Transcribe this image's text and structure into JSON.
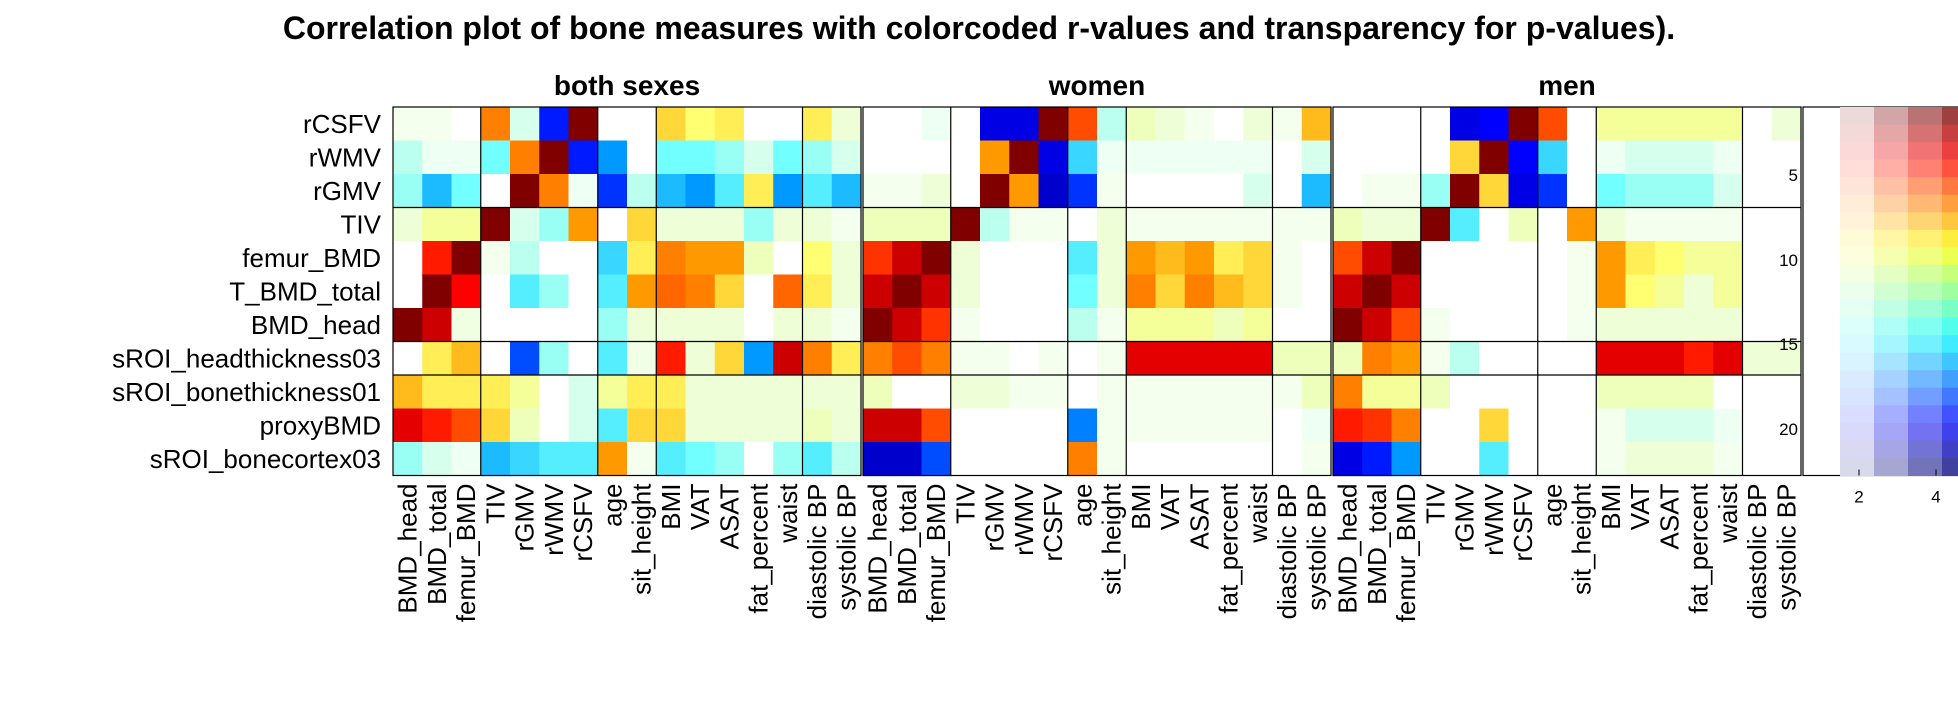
{
  "chart_data": {
    "type": "heatmap",
    "title": "Correlation plot of bone measures with colorcoded r-values and transparency for p-values).",
    "rows": [
      "rCSFV",
      "rWMV",
      "rGMV",
      "TIV",
      "femur_BMD",
      "T_BMD_total",
      "BMD_head",
      "sROI_headthickness03",
      "sROI_bonethickness01",
      "proxyBMD",
      "sROI_bonecortex03"
    ],
    "columns": [
      "BMD_head",
      "BMD_total",
      "femur_BMD",
      "TIV",
      "rGMV",
      "rWMV",
      "rCSFV",
      "age",
      "sit_height",
      "BMI",
      "VAT",
      "ASAT",
      "fat_percent",
      "waist",
      "diastolic BP",
      "systolic BP"
    ],
    "row_groups": [
      3,
      4,
      1,
      3
    ],
    "column_groups": [
      3,
      4,
      2,
      5,
      2
    ],
    "y_tick_labels": [
      "5",
      "10",
      "15",
      "20"
    ],
    "colorbar_tick_labels": [
      "2",
      "4"
    ],
    "value_range": [
      -1,
      1
    ],
    "panels": [
      {
        "title": "both sexes",
        "r": [
          [
            0.05,
            0.05,
            0.0,
            0.5,
            -0.1,
            -0.7,
            1.0,
            0.0,
            0.0,
            0.35,
            0.25,
            0.3,
            0.0,
            0.0,
            0.3,
            0.1
          ],
          [
            -0.15,
            -0.05,
            -0.05,
            -0.25,
            0.5,
            1.0,
            -0.7,
            -0.45,
            0.0,
            -0.25,
            -0.25,
            -0.2,
            -0.1,
            -0.25,
            -0.2,
            -0.1
          ],
          [
            -0.2,
            -0.4,
            -0.25,
            0.0,
            1.0,
            0.5,
            -0.05,
            -0.65,
            -0.15,
            -0.4,
            -0.45,
            -0.3,
            0.3,
            -0.45,
            -0.3,
            -0.4
          ],
          [
            0.1,
            0.2,
            0.2,
            1.0,
            -0.1,
            -0.2,
            0.45,
            0.0,
            0.35,
            0.1,
            0.1,
            0.1,
            -0.2,
            0.1,
            0.1,
            0.05
          ],
          [
            0.0,
            0.7,
            1.0,
            0.05,
            -0.15,
            0.0,
            0.0,
            -0.35,
            0.3,
            0.5,
            0.45,
            0.45,
            0.15,
            0.0,
            0.25,
            0.1
          ],
          [
            0.0,
            1.0,
            0.75,
            0.0,
            -0.3,
            -0.2,
            0.0,
            -0.3,
            0.45,
            0.55,
            0.5,
            0.35,
            0.0,
            0.55,
            0.3,
            0.1
          ],
          [
            1.0,
            0.85,
            0.08,
            0.0,
            0.0,
            0.0,
            0.0,
            -0.2,
            0.1,
            0.1,
            0.1,
            0.1,
            0.0,
            0.1,
            0.1,
            0.05
          ],
          [
            0.0,
            0.3,
            0.4,
            0.0,
            -0.6,
            -0.2,
            0.0,
            -0.3,
            0.07,
            0.7,
            0.1,
            0.35,
            -0.45,
            0.85,
            0.5,
            0.3
          ],
          [
            0.4,
            0.3,
            0.3,
            0.3,
            0.2,
            0.0,
            -0.1,
            0.2,
            0.3,
            0.3,
            0.1,
            0.1,
            0.1,
            0.1,
            0.1,
            0.1
          ],
          [
            0.8,
            0.7,
            0.6,
            0.35,
            0.15,
            0.0,
            -0.1,
            -0.3,
            0.35,
            0.35,
            0.1,
            0.1,
            0.1,
            0.1,
            0.15,
            0.1
          ],
          [
            -0.2,
            -0.1,
            -0.05,
            -0.4,
            -0.35,
            -0.3,
            -0.3,
            0.45,
            0.05,
            -0.3,
            -0.25,
            -0.2,
            0.0,
            -0.2,
            -0.3,
            -0.15
          ]
        ]
      },
      {
        "title": "women",
        "r": [
          [
            0.0,
            0.0,
            -0.05,
            0.0,
            -0.8,
            -0.8,
            1.0,
            0.6,
            -0.15,
            0.15,
            0.1,
            0.05,
            0.0,
            0.1,
            0.05,
            0.4
          ],
          [
            0.0,
            0.0,
            0.0,
            0.0,
            0.45,
            1.0,
            -0.8,
            -0.35,
            -0.05,
            -0.05,
            -0.05,
            -0.05,
            -0.05,
            -0.05,
            0.0,
            -0.1
          ],
          [
            0.05,
            0.05,
            0.1,
            0.0,
            1.0,
            0.45,
            -0.85,
            -0.65,
            0.05,
            0.0,
            0.0,
            0.0,
            0.0,
            -0.1,
            0.0,
            -0.4
          ],
          [
            0.15,
            0.15,
            0.15,
            1.0,
            -0.15,
            0.05,
            0.05,
            0.0,
            0.1,
            0.05,
            0.05,
            0.05,
            0.05,
            0.05,
            0.05,
            0.05
          ],
          [
            0.65,
            0.85,
            1.0,
            0.1,
            0.0,
            0.0,
            0.0,
            -0.3,
            0.1,
            0.45,
            0.4,
            0.45,
            0.3,
            0.35,
            0.05,
            0.0
          ],
          [
            0.85,
            1.0,
            0.85,
            0.1,
            0.0,
            0.0,
            0.0,
            -0.25,
            0.1,
            0.5,
            0.35,
            0.5,
            0.4,
            0.35,
            0.05,
            0.0
          ],
          [
            1.0,
            0.85,
            0.65,
            0.05,
            0.0,
            0.0,
            0.0,
            -0.15,
            0.05,
            0.2,
            0.2,
            0.2,
            0.15,
            0.2,
            0.0,
            0.0
          ],
          [
            0.5,
            0.6,
            0.5,
            0.05,
            0.05,
            0.0,
            0.05,
            0.0,
            0.05,
            0.8,
            0.8,
            0.8,
            0.8,
            0.8,
            0.15,
            0.15
          ],
          [
            0.15,
            0.0,
            0.0,
            0.1,
            0.1,
            0.05,
            0.05,
            0.0,
            0.05,
            0.05,
            0.05,
            0.05,
            0.05,
            0.05,
            0.05,
            0.15
          ],
          [
            0.85,
            0.85,
            0.6,
            0.0,
            0.0,
            0.0,
            0.0,
            -0.5,
            0.05,
            0.05,
            0.05,
            0.05,
            0.05,
            0.05,
            0.0,
            -0.05
          ],
          [
            -0.85,
            -0.85,
            -0.6,
            0.0,
            0.0,
            0.0,
            0.0,
            0.5,
            0.05,
            0.0,
            0.0,
            0.0,
            0.0,
            0.0,
            0.0,
            0.05
          ]
        ]
      },
      {
        "title": "men",
        "r": [
          [
            0.0,
            0.0,
            0.0,
            0.0,
            -0.8,
            -0.75,
            1.0,
            0.6,
            0.0,
            0.2,
            0.2,
            0.2,
            0.2,
            0.2,
            0.0,
            0.1
          ],
          [
            0.0,
            0.0,
            0.0,
            0.0,
            0.35,
            1.0,
            -0.75,
            -0.35,
            0.0,
            -0.05,
            -0.1,
            -0.1,
            -0.1,
            -0.05,
            0.0,
            0.0
          ],
          [
            0.0,
            0.05,
            0.05,
            -0.2,
            1.0,
            0.35,
            -0.8,
            -0.65,
            0.0,
            -0.25,
            -0.2,
            -0.2,
            -0.2,
            -0.1,
            0.0,
            0.0
          ],
          [
            0.15,
            0.1,
            0.1,
            1.0,
            -0.3,
            0.0,
            0.15,
            0.0,
            0.45,
            0.1,
            0.05,
            0.05,
            0.05,
            0.05,
            0.0,
            0.0
          ],
          [
            0.6,
            0.85,
            1.0,
            0.0,
            0.0,
            0.0,
            0.0,
            0.0,
            0.05,
            0.45,
            0.3,
            0.25,
            0.2,
            0.2,
            0.0,
            0.0
          ],
          [
            0.85,
            1.0,
            0.85,
            0.0,
            0.0,
            0.0,
            0.0,
            0.0,
            0.05,
            0.45,
            0.25,
            0.2,
            0.1,
            0.2,
            0.0,
            0.0
          ],
          [
            1.0,
            0.85,
            0.6,
            0.05,
            0.0,
            0.0,
            0.0,
            0.0,
            0.05,
            0.1,
            0.1,
            0.1,
            0.1,
            0.1,
            0.0,
            0.0
          ],
          [
            0.15,
            0.5,
            0.45,
            0.05,
            -0.15,
            0.0,
            0.0,
            0.0,
            0.0,
            0.8,
            0.8,
            0.8,
            0.7,
            0.8,
            0.1,
            0.1
          ],
          [
            0.5,
            0.2,
            0.2,
            0.15,
            0.0,
            0.0,
            0.0,
            0.0,
            0.0,
            0.15,
            0.15,
            0.15,
            0.15,
            0.0,
            0.0,
            0.0
          ],
          [
            0.7,
            0.65,
            0.5,
            0.0,
            0.0,
            0.35,
            0.0,
            0.0,
            0.0,
            0.05,
            -0.1,
            -0.1,
            -0.1,
            -0.05,
            0.0,
            0.0
          ],
          [
            -0.8,
            -0.7,
            -0.45,
            0.0,
            0.0,
            -0.3,
            0.0,
            0.0,
            0.0,
            0.05,
            0.1,
            0.1,
            0.1,
            0.05,
            0.0,
            0.0
          ]
        ]
      }
    ]
  }
}
